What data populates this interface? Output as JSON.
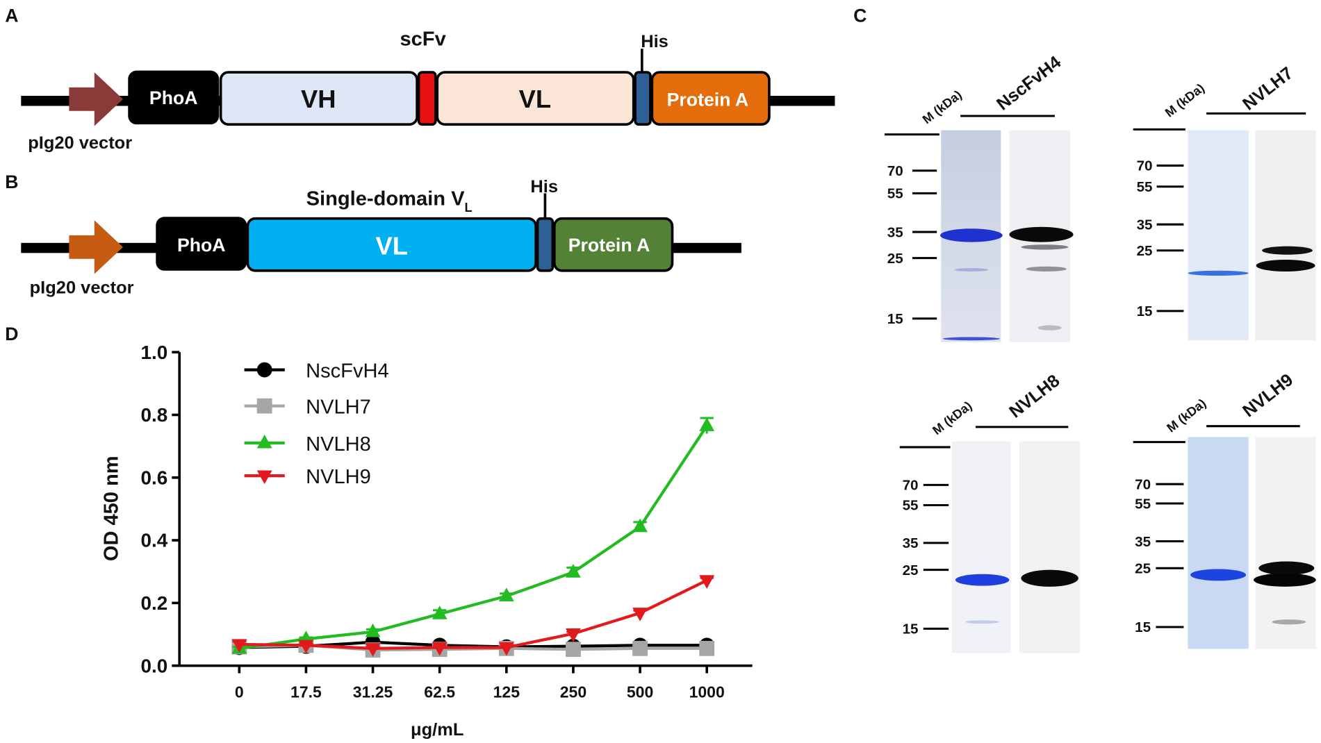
{
  "panels": {
    "A": {
      "label": "A",
      "title": "scFv",
      "his": "His",
      "segments": [
        "PhoA",
        "VH",
        "VL",
        "Protein A"
      ],
      "vector": "pIg20 vector"
    },
    "B": {
      "label": "B",
      "title": "Single-domain V",
      "title_sub": "L",
      "his": "His",
      "segments": [
        "PhoA",
        "VL",
        "Protein A"
      ],
      "vector": "pIg20 vector"
    },
    "C": {
      "label": "C",
      "gels": [
        {
          "marker_label": "M (kDa)",
          "name": "NscFvH4",
          "markers": [
            70,
            55,
            35,
            25,
            15
          ]
        },
        {
          "marker_label": "M (kDa)",
          "name": "NVLH7",
          "markers": [
            70,
            55,
            35,
            25,
            15
          ]
        },
        {
          "marker_label": "M (kDa)",
          "name": "NVLH8",
          "markers": [
            70,
            55,
            35,
            25,
            15
          ]
        },
        {
          "marker_label": "M (kDa)",
          "name": "NVLH9",
          "markers": [
            70,
            55,
            35,
            25,
            15
          ]
        }
      ]
    }
  },
  "chart_data": {
    "type": "line",
    "panel_label": "D",
    "x_label": "μg/mL",
    "y_label": "OD 450 nm",
    "categories": [
      "0",
      "17.5",
      "31.25",
      "62.5",
      "125",
      "250",
      "500",
      "1000"
    ],
    "ylim": [
      0,
      1.0
    ],
    "yticks": [
      {
        "value": 0,
        "label": "0.0"
      },
      0.2,
      0.4,
      0.6,
      0.8,
      {
        "value": 1.0,
        "label": "1.0"
      }
    ],
    "legend": "top-left",
    "series": [
      {
        "name": "NscFvH4",
        "color": "#000000",
        "marker": "circle",
        "values": [
          0.058,
          0.062,
          0.075,
          0.065,
          0.06,
          0.062,
          0.065,
          0.065
        ]
      },
      {
        "name": "NVLH7",
        "color": "#a6a6a6",
        "marker": "square",
        "values": [
          0.06,
          0.065,
          0.05,
          0.052,
          0.055,
          0.052,
          0.055,
          0.055
        ]
      },
      {
        "name": "NVLH8",
        "color": "#22bb22",
        "marker": "triangle-up",
        "values": [
          0.055,
          0.085,
          0.108,
          0.165,
          0.222,
          0.298,
          0.443,
          0.765
        ],
        "errors": [
          0.005,
          0.005,
          0.008,
          0.012,
          0.008,
          0.015,
          0.015,
          0.025
        ]
      },
      {
        "name": "NVLH9",
        "color": "#e31a1c",
        "marker": "triangle-down",
        "values": [
          0.068,
          0.065,
          0.055,
          0.058,
          0.058,
          0.102,
          0.168,
          0.272
        ],
        "errors": [
          0.01,
          0.005,
          0.005,
          0.005,
          0.004,
          0.006,
          0.008,
          0.008
        ]
      }
    ]
  }
}
